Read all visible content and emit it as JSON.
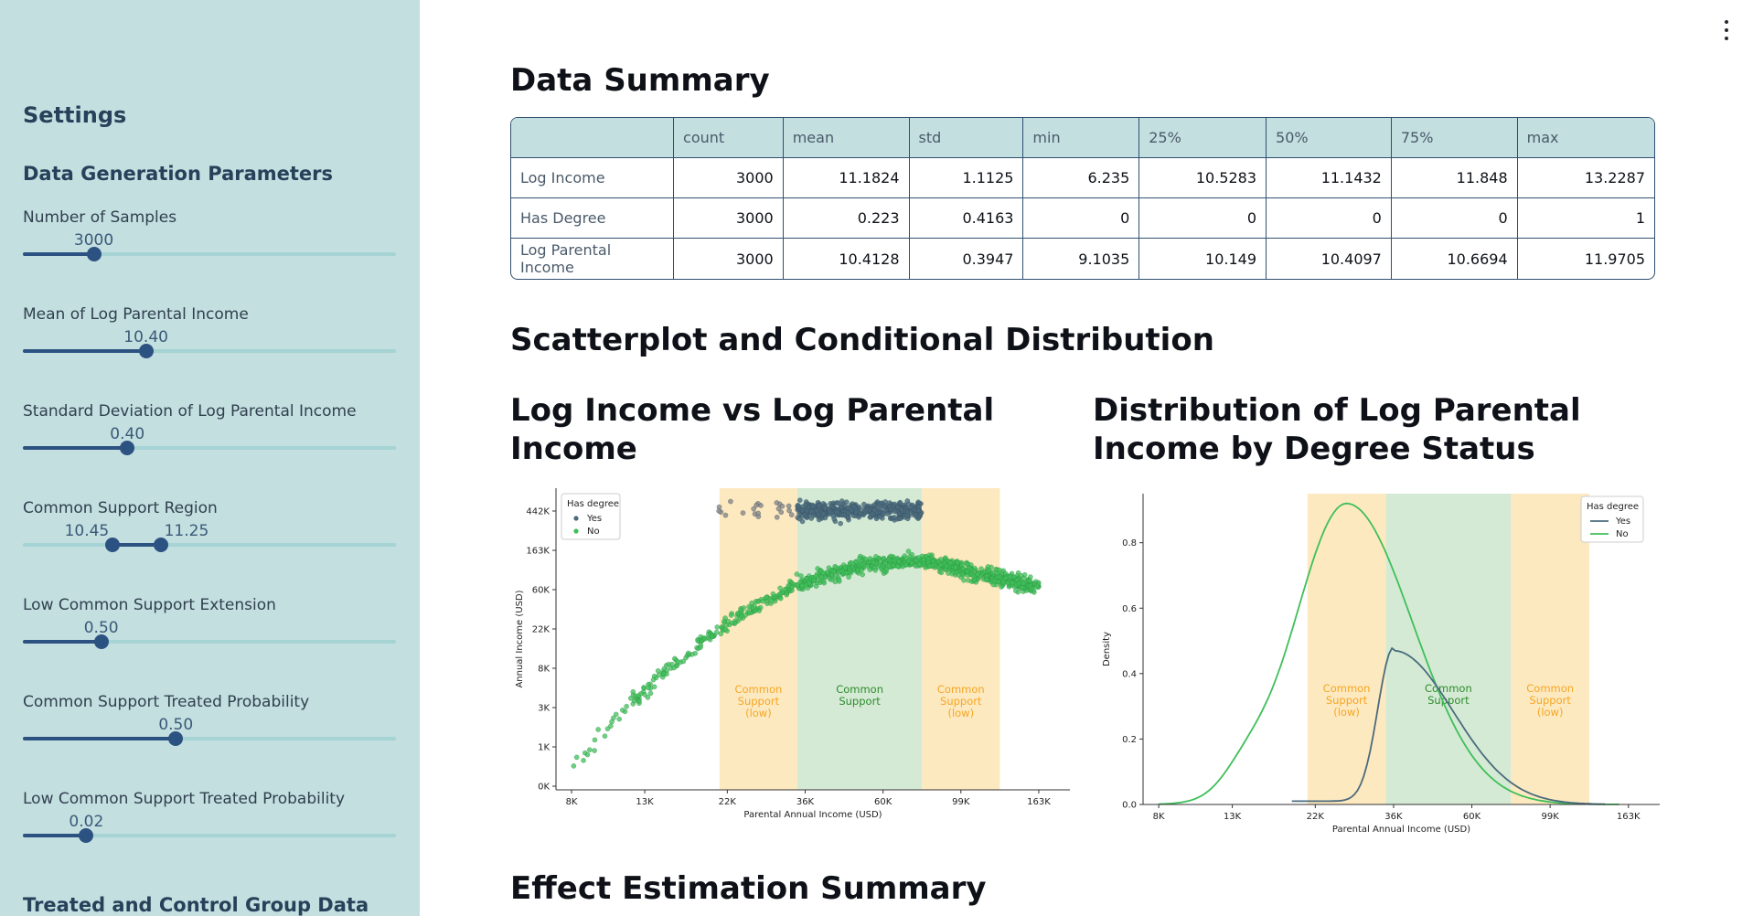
{
  "sidebar": {
    "title": "Settings",
    "section_data_gen": "Data Generation Parameters",
    "section_groups": "Treated and Control Group Data",
    "sliders": [
      {
        "label": "Number of Samples",
        "value": "3000",
        "fraction": 0.19
      },
      {
        "label": "Mean of Log Parental Income",
        "value": "10.40",
        "fraction": 0.33
      },
      {
        "label": "Standard Deviation of Log Parental Income",
        "value": "0.40",
        "fraction": 0.28
      },
      {
        "label": "Common Support Region",
        "low_value": "10.45",
        "high_value": "11.25",
        "low_fraction": 0.24,
        "high_fraction": 0.37
      },
      {
        "label": "Low Common Support Extension",
        "value": "0.50",
        "fraction": 0.21
      },
      {
        "label": "Common Support Treated Probability",
        "value": "0.50",
        "fraction": 0.41
      },
      {
        "label": "Low Common Support Treated Probability",
        "value": "0.02",
        "fraction": 0.17
      }
    ],
    "colors": {
      "background": "#c3dfe0",
      "accent": "#2c5282",
      "track": "#a6d3d3"
    }
  },
  "main": {
    "data_summary_title": "Data Summary",
    "table": {
      "columns": [
        "",
        "count",
        "mean",
        "std",
        "min",
        "25%",
        "50%",
        "75%",
        "max"
      ],
      "rows": [
        [
          "Log Income",
          "3000",
          "11.1824",
          "1.1125",
          "6.235",
          "10.5283",
          "11.1432",
          "11.848",
          "13.2287"
        ],
        [
          "Has Degree",
          "3000",
          "0.223",
          "0.4163",
          "0",
          "0",
          "0",
          "0",
          "1"
        ],
        [
          "Log Parental Income",
          "3000",
          "10.4128",
          "0.3947",
          "9.1035",
          "10.149",
          "10.4097",
          "10.6694",
          "11.9705"
        ]
      ]
    },
    "scatter_section_title": "Scatterplot and Conditional Distribution",
    "scatter_title": "Log Income vs Log Parental Income",
    "dist_title": "Distribution of Log Parental Income by Degree Status",
    "effect_title": "Effect Estimation Summary",
    "menu_icon": "vertical-dots-icon"
  },
  "chart_data": [
    {
      "type": "scatter",
      "xlabel": "Parental Annual Income (USD)",
      "ylabel": "Annual Income (USD)",
      "x_ticks": [
        "8K",
        "13K",
        "22K",
        "36K",
        "60K",
        "99K",
        "163K"
      ],
      "y_ticks": [
        "0K",
        "1K",
        "3K",
        "8K",
        "22K",
        "60K",
        "163K",
        "442K"
      ],
      "xlim_log": [
        8.9,
        12.2
      ],
      "ylim_log": [
        6.0,
        13.4
      ],
      "legend": {
        "title": "Has degree",
        "entries": [
          "Yes",
          "No"
        ],
        "position": "top-left"
      },
      "regions": [
        {
          "label": "Common Support (low)",
          "x_from": 9.95,
          "x_to": 10.45,
          "color": "#fde9c0"
        },
        {
          "label": "Common Support",
          "x_from": 10.45,
          "x_to": 11.25,
          "color": "#d4ead4"
        },
        {
          "label": "Common Support (low)",
          "x_from": 11.25,
          "x_to": 11.75,
          "color": "#fde9c0"
        }
      ],
      "series": [
        {
          "name": "Yes",
          "color": "#4a6b7d",
          "x_from": 9.9,
          "x_to": 11.25,
          "y_center": 12.85,
          "y_spread": 0.2
        },
        {
          "name": "No",
          "color": "#3fbf5a",
          "x_from": 9.0,
          "x_to": 12.0,
          "curve": "concave",
          "y_at_min": 6.5,
          "y_peak": 11.6
        }
      ]
    },
    {
      "type": "line",
      "xlabel": "Parental Annual Income (USD)",
      "ylabel": "Density",
      "x_ticks": [
        "8K",
        "13K",
        "22K",
        "36K",
        "60K",
        "99K",
        "163K"
      ],
      "y_ticks": [
        "0.0",
        "0.2",
        "0.4",
        "0.6",
        "0.8"
      ],
      "ylim": [
        0,
        0.95
      ],
      "legend": {
        "title": "Has degree",
        "entries": [
          "Yes",
          "No"
        ],
        "position": "top-right"
      },
      "regions": [
        {
          "label": "Common Support (low)",
          "x_from": 9.95,
          "x_to": 10.45,
          "color": "#fde9c0"
        },
        {
          "label": "Common Support",
          "x_from": 10.45,
          "x_to": 11.25,
          "color": "#d4ead4"
        },
        {
          "label": "Common Support (low)",
          "x_from": 11.25,
          "x_to": 11.75,
          "color": "#fde9c0"
        }
      ],
      "series": [
        {
          "name": "Yes",
          "color": "#4a6b7d",
          "peak_x": 10.5,
          "peak_y": 0.47
        },
        {
          "name": "No",
          "color": "#3fbf5a",
          "peak_x": 10.2,
          "peak_y": 0.92
        }
      ]
    }
  ]
}
